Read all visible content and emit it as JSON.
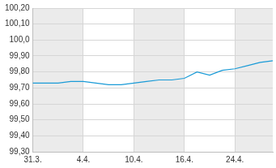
{
  "chart_data": {
    "type": "line",
    "categories": [
      "31.3.",
      null,
      null,
      null,
      "4.4.",
      null,
      null,
      null,
      "10.4.",
      null,
      null,
      null,
      "16.4.",
      null,
      null,
      null,
      "24.4.",
      null,
      null,
      null
    ],
    "values": [
      99.73,
      99.73,
      99.73,
      99.74,
      99.74,
      99.73,
      99.72,
      99.72,
      99.73,
      99.74,
      99.75,
      99.75,
      99.76,
      99.8,
      99.78,
      99.81,
      99.82,
      99.84,
      99.86,
      99.87
    ],
    "color": "#1a9bd7",
    "ylim": [
      99.3,
      100.2
    ],
    "yticks": [
      {
        "value": 99.3,
        "label": "99,30"
      },
      {
        "value": 99.4,
        "label": "99,40"
      },
      {
        "value": 99.5,
        "label": "99,50"
      },
      {
        "value": 99.6,
        "label": "99,60"
      },
      {
        "value": 99.7,
        "label": "99,70"
      },
      {
        "value": 99.8,
        "label": "99,80"
      },
      {
        "value": 99.9,
        "label": "99,90"
      },
      {
        "value": 100.0,
        "label": "100,0"
      },
      {
        "value": 100.1,
        "label": "100,10"
      },
      {
        "value": 100.2,
        "label": "100,20"
      }
    ],
    "grid": true
  }
}
